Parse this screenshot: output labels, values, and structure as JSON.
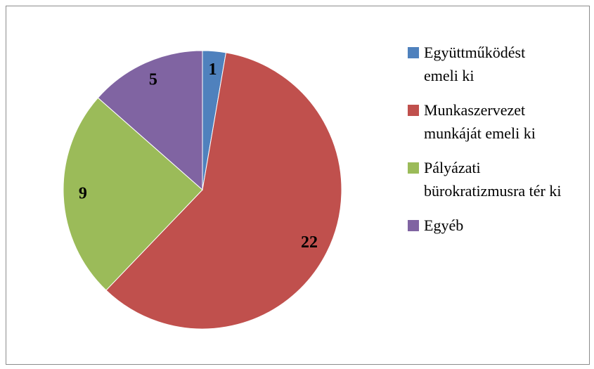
{
  "chart_data": {
    "type": "pie",
    "categories": [
      "Együttműködést emeli ki",
      "Munkaszervezet munkáját emeli ki",
      "Pályázati bürokratizmusra tér ki",
      "Egyéb"
    ],
    "values": [
      1,
      22,
      9,
      5
    ],
    "colors": [
      "#4f81bd",
      "#c0504d",
      "#9bbb59",
      "#8064a2"
    ],
    "legend": "right"
  }
}
